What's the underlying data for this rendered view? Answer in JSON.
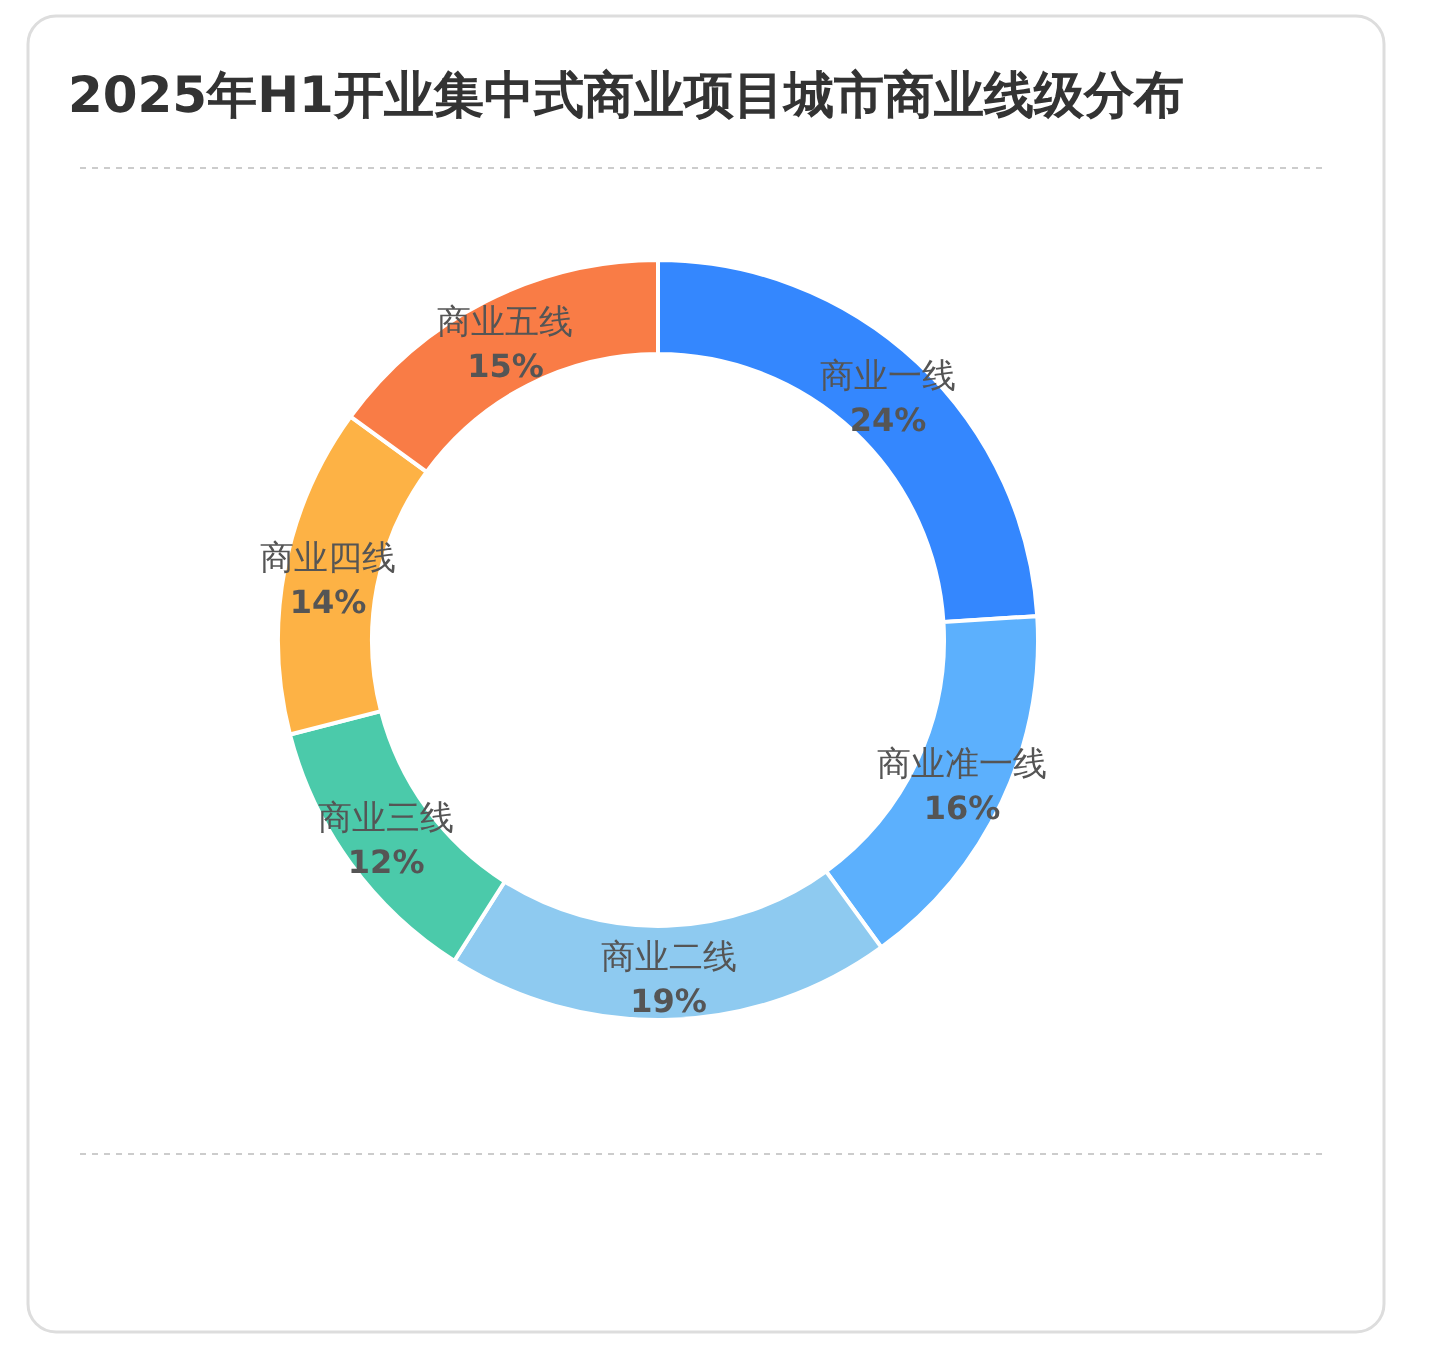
{
  "chart_data": {
    "type": "donut",
    "title": "2025年H1开业集中式商业项目城市商业线级分布",
    "categories": [
      "商业一线",
      "商业准一线",
      "商业二线",
      "商业三线",
      "商业四线",
      "商业五线"
    ],
    "values": [
      24,
      16,
      19,
      12,
      14,
      15
    ],
    "colors": [
      "#3487fe",
      "#5cb0fd",
      "#8ecaf0",
      "#4bcaaa",
      "#fdb245",
      "#f97c46"
    ],
    "value_labels": [
      "24%",
      "16%",
      "19%",
      "12%",
      "14%",
      "15%"
    ],
    "legend": false
  }
}
